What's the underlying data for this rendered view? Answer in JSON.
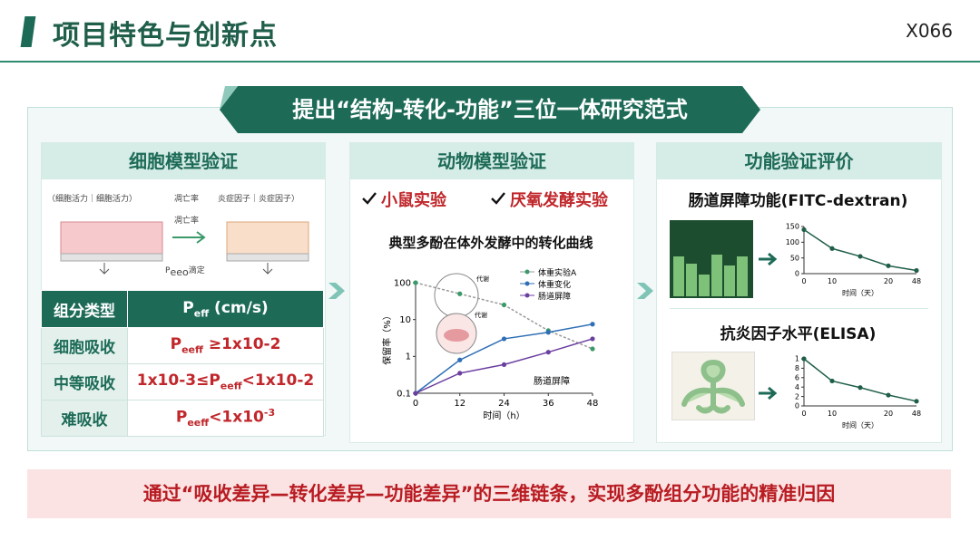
{
  "header": {
    "title": "项目特色与创新点",
    "code": "X066"
  },
  "banner": "提出“结构-转化-功能”三位一体研究范式",
  "cell_panel": {
    "title": "细胞模型验证",
    "figure_labels": [
      [
        {
          "text": "（细胞活力｜细胞活力）"
        }
      ],
      [
        {
          "text": "凋亡率"
        }
      ],
      [
        {
          "text": "凋亡率"
        }
      ],
      [
        {
          "text": "炎症因子｜炎症因子）"
        }
      ],
      [
        {
          "text": "P"
        },
        {
          "sub": "eeo"
        },
        {
          "text": "滴定"
        }
      ]
    ],
    "table": {
      "header": [
        [
          {
            "text": "组分类型"
          }
        ],
        [
          {
            "text": "P"
          },
          {
            "sub": "eff"
          },
          {
            "text": " (cm/s)"
          }
        ]
      ],
      "rows": [
        [
          [
            {
              "text": "细胞吸收"
            }
          ],
          [
            {
              "text": "P"
            },
            {
              "sub": "eeff"
            },
            {
              "text": " ≥1x10-2"
            }
          ]
        ],
        [
          [
            {
              "text": "中等吸收"
            }
          ],
          [
            {
              "text": "1x10-3≤P"
            },
            {
              "sub": "eeff"
            },
            {
              "text": "<1x10-2"
            }
          ]
        ],
        [
          [
            {
              "text": "难吸收"
            }
          ],
          [
            {
              "text": "P"
            },
            {
              "sub": "eeff"
            },
            {
              "text": "<1x10"
            },
            {
              "sup": "-3"
            }
          ]
        ]
      ]
    }
  },
  "animal_panel": {
    "title": "动物模型验证",
    "checks": [
      "小鼠实验",
      "厌氧发酵实验"
    ],
    "chart": {
      "type": "line",
      "title": "典型多酚在体外发酵中的转化曲线",
      "x": [
        0,
        12,
        24,
        36,
        48
      ],
      "xlim": [
        0,
        48
      ],
      "xticks": [
        0,
        12,
        24,
        36,
        48
      ],
      "ylim": [
        0.1,
        100
      ],
      "yticks": [
        0.1,
        1,
        10,
        100
      ],
      "log_y": true,
      "x_label": "时间（h）",
      "y_label": "保留率（%）",
      "annotations": [
        "代谢",
        "代谢",
        "肠道屏障"
      ],
      "series": [
        {
          "name": "体重实验A",
          "color": "#3a9a6a",
          "dashed": true,
          "values": [
            100,
            50,
            25,
            5,
            1.6
          ]
        },
        {
          "name": "体重变化",
          "color": "#2f6fb5",
          "values": [
            0.1,
            0.8,
            3,
            4.5,
            7.5
          ]
        },
        {
          "name": "肠道屏障",
          "color": "#6b3fa0",
          "values": [
            0.1,
            0.35,
            0.6,
            1.3,
            3
          ]
        }
      ]
    }
  },
  "function_panel": {
    "title": "功能验证评价",
    "barrier": {
      "title": "肠道屏障功能(FITC-dextran)",
      "chart": {
        "type": "line",
        "categories": [
          "0",
          "10",
          null,
          "20",
          "48"
        ],
        "values": [
          140,
          80,
          55,
          25,
          10
        ],
        "color": "#1f5e4a",
        "ylim": [
          0,
          150
        ],
        "yticks": [
          0,
          50,
          100,
          150
        ],
        "x_label": "时间（天）"
      }
    },
    "elisa": {
      "title": "抗炎因子水平(ELISA)",
      "chart": {
        "type": "line",
        "categories": [
          "0",
          "10",
          null,
          "20",
          "48"
        ],
        "values": [
          1.0,
          0.53,
          0.39,
          0.23,
          0.1
        ],
        "color": "#1f5e4a",
        "ylim": [
          0,
          1
        ],
        "yticks": [
          0,
          {
            "value": 0.2,
            "label": "2"
          },
          {
            "value": 0.4,
            "label": "4"
          },
          {
            "value": 0.6,
            "label": "6"
          },
          {
            "value": 0.8,
            "label": "8"
          },
          1
        ],
        "x_label": "时间（天）"
      }
    }
  },
  "footer": "通过“吸收差异—转化差异—功能差异”的三维链条，实现多酚组分功能的精准归因"
}
